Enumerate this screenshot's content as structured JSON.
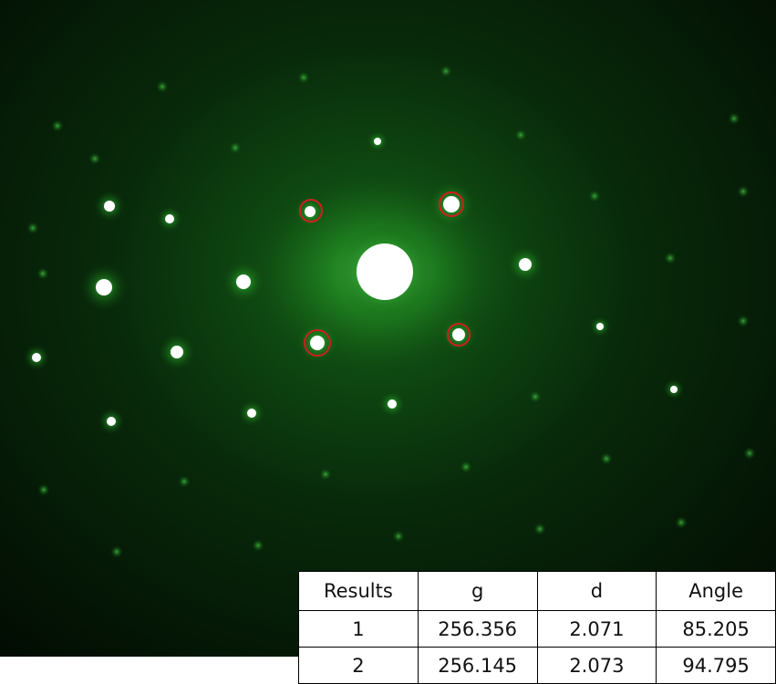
{
  "image": {
    "subject": "electron diffraction spot pattern",
    "colors": {
      "background": "#000000",
      "glow": "#1f8f1f",
      "spot_core": "#ffffff",
      "marker_ring": "#cc1f1f"
    }
  },
  "results_table": {
    "headers": [
      "Results",
      "g",
      "d",
      "Angle"
    ],
    "rows": [
      [
        "1",
        "256.356",
        "2.071",
        "85.205"
      ],
      [
        "2",
        "256.145",
        "2.073",
        "94.795"
      ]
    ]
  }
}
